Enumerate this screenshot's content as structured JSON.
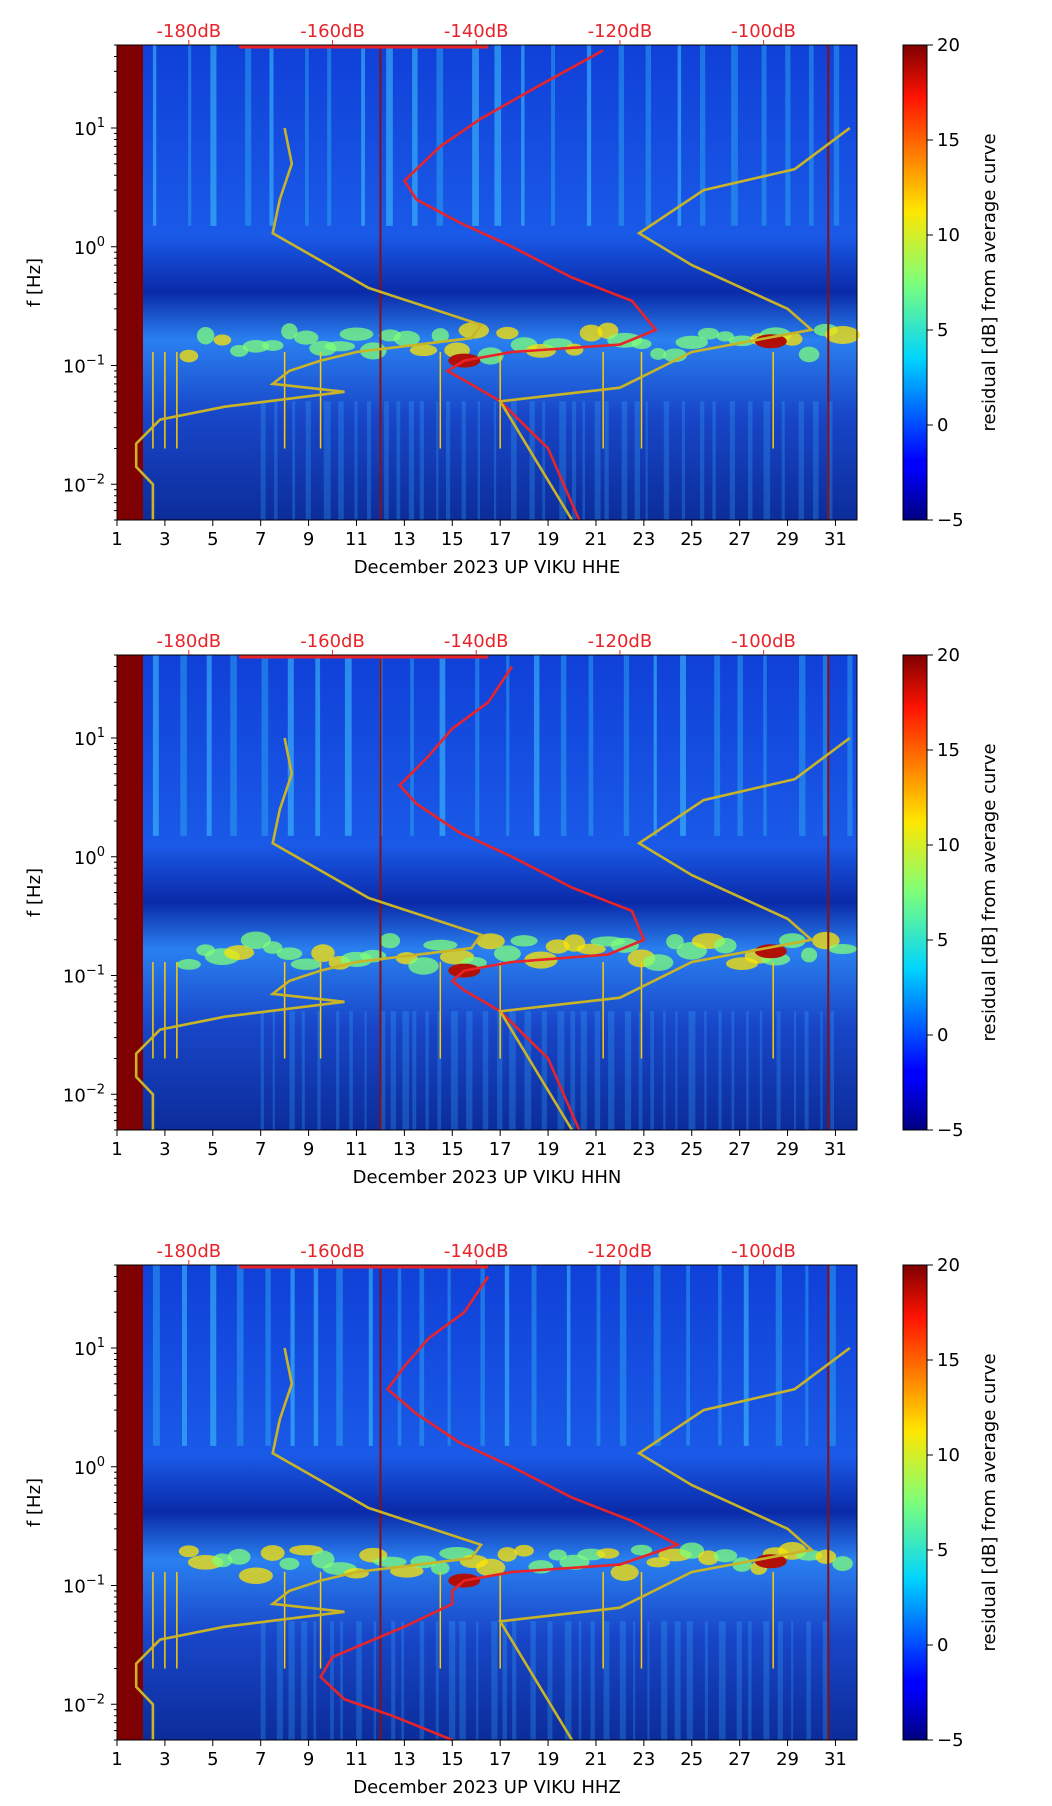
{
  "chart_data": [
    {
      "type": "heatmap",
      "title": "",
      "xlabel": "December 2023 UP VIKU  HHE",
      "ylabel": "f [Hz]",
      "x_ticks": [
        1,
        3,
        5,
        7,
        9,
        11,
        13,
        15,
        17,
        19,
        21,
        23,
        25,
        27,
        29,
        31
      ],
      "xlim": [
        1,
        31.9
      ],
      "y_scale": "log",
      "ylim": [
        0.005,
        50
      ],
      "y_ticks": [
        {
          "value": 0.01,
          "base": "10",
          "exp": "−2"
        },
        {
          "value": 0.1,
          "base": "10",
          "exp": "−1"
        },
        {
          "value": 1,
          "base": "10",
          "exp": "0"
        },
        {
          "value": 10,
          "base": "10",
          "exp": "1"
        }
      ],
      "top_axis_labels": [
        "-180dB",
        "-160dB",
        "-140dB",
        "-120dB",
        "-100dB"
      ],
      "colorbar": {
        "label": "residual [dB] from average curve",
        "min": -5,
        "max": 20,
        "ticks": [
          -5,
          0,
          5,
          10,
          15,
          20
        ],
        "tick_labels": [
          "−5",
          "0",
          "5",
          "10",
          "15",
          "20"
        ],
        "colormap": "jet"
      },
      "series": [
        {
          "name": "average PSD (red)",
          "color": "#e8232a",
          "x": [
            21.3,
            18.5,
            16.2,
            14.5,
            13.0,
            13.5,
            15.3,
            17.5,
            20.0,
            22.5,
            23.5,
            22.0,
            17.5,
            15.5,
            14.8,
            15.5,
            17.0,
            19.0,
            20.3
          ],
          "y": [
            45,
            22,
            12,
            7,
            3.6,
            2.5,
            1.6,
            1.0,
            0.55,
            0.35,
            0.2,
            0.15,
            0.13,
            0.11,
            0.09,
            0.075,
            0.05,
            0.02,
            0.005
          ]
        },
        {
          "name": "noise model (yellow)",
          "color": "#c9b428",
          "x": [
            8.0,
            8.3,
            7.8,
            7.5,
            11.5,
            16.2,
            15.8,
            11.0,
            9.5,
            8.2,
            7.5,
            10.5,
            5.5,
            2.8,
            1.8,
            1.8,
            2.5,
            2.5
          ],
          "y": [
            10,
            5,
            2.5,
            1.3,
            0.45,
            0.22,
            0.17,
            0.13,
            0.11,
            0.09,
            0.07,
            0.06,
            0.045,
            0.035,
            0.022,
            0.014,
            0.01,
            0.005
          ]
        },
        {
          "name": "noise model 2 (yellow)",
          "color": "#c9b428",
          "x": [
            20.0,
            17.0,
            22.0,
            25.0,
            30.0,
            29.0,
            25.0,
            22.8,
            25.5,
            29.3,
            31.6
          ],
          "y": [
            0.005,
            0.05,
            0.065,
            0.13,
            0.2,
            0.3,
            0.7,
            1.3,
            3.0,
            4.5,
            10
          ]
        }
      ]
    },
    {
      "type": "heatmap",
      "title": "",
      "xlabel": "December 2023 UP VIKU  HHN",
      "ylabel": "f [Hz]",
      "x_ticks": [
        1,
        3,
        5,
        7,
        9,
        11,
        13,
        15,
        17,
        19,
        21,
        23,
        25,
        27,
        29,
        31
      ],
      "xlim": [
        1,
        31.9
      ],
      "y_scale": "log",
      "ylim": [
        0.005,
        50
      ],
      "y_ticks": [
        {
          "value": 0.01,
          "base": "10",
          "exp": "−2"
        },
        {
          "value": 0.1,
          "base": "10",
          "exp": "−1"
        },
        {
          "value": 1,
          "base": "10",
          "exp": "0"
        },
        {
          "value": 10,
          "base": "10",
          "exp": "1"
        }
      ],
      "top_axis_labels": [
        "-180dB",
        "-160dB",
        "-140dB",
        "-120dB",
        "-100dB"
      ],
      "colorbar": {
        "label": "residual [dB] from average curve",
        "min": -5,
        "max": 20,
        "ticks": [
          -5,
          0,
          5,
          10,
          15,
          20
        ],
        "tick_labels": [
          "−5",
          "0",
          "5",
          "10",
          "15",
          "20"
        ],
        "colormap": "jet"
      },
      "series": [
        {
          "name": "average PSD (red)",
          "color": "#e8232a",
          "x": [
            17.5,
            16.5,
            15.0,
            14.0,
            12.8,
            13.5,
            15.3,
            17.5,
            20.0,
            22.5,
            23.0,
            21.5,
            17.5,
            15.5,
            15.0,
            15.5,
            17.0,
            19.0,
            20.3
          ],
          "y": [
            40,
            20,
            12,
            7,
            4.0,
            2.8,
            1.6,
            1.0,
            0.55,
            0.35,
            0.2,
            0.15,
            0.13,
            0.11,
            0.09,
            0.075,
            0.05,
            0.02,
            0.005
          ]
        },
        {
          "name": "noise model (yellow)",
          "color": "#c9b428",
          "x": [
            8.0,
            8.3,
            7.8,
            7.5,
            11.5,
            16.2,
            15.8,
            11.0,
            9.5,
            8.2,
            7.5,
            10.5,
            5.5,
            2.8,
            1.8,
            1.8,
            2.5,
            2.5
          ],
          "y": [
            10,
            5,
            2.5,
            1.3,
            0.45,
            0.22,
            0.17,
            0.13,
            0.11,
            0.09,
            0.07,
            0.06,
            0.045,
            0.035,
            0.022,
            0.014,
            0.01,
            0.005
          ]
        },
        {
          "name": "noise model 2 (yellow)",
          "color": "#c9b428",
          "x": [
            20.0,
            17.0,
            22.0,
            25.0,
            30.0,
            29.0,
            25.0,
            22.8,
            25.5,
            29.3,
            31.6
          ],
          "y": [
            0.005,
            0.05,
            0.065,
            0.13,
            0.2,
            0.3,
            0.7,
            1.3,
            3.0,
            4.5,
            10
          ]
        }
      ]
    },
    {
      "type": "heatmap",
      "title": "",
      "xlabel": "December 2023 UP VIKU  HHZ",
      "ylabel": "f [Hz]",
      "x_ticks": [
        1,
        3,
        5,
        7,
        9,
        11,
        13,
        15,
        17,
        19,
        21,
        23,
        25,
        27,
        29,
        31
      ],
      "xlim": [
        1,
        31.9
      ],
      "y_scale": "log",
      "ylim": [
        0.005,
        50
      ],
      "y_ticks": [
        {
          "value": 0.01,
          "base": "10",
          "exp": "−2"
        },
        {
          "value": 0.1,
          "base": "10",
          "exp": "−1"
        },
        {
          "value": 1,
          "base": "10",
          "exp": "0"
        },
        {
          "value": 10,
          "base": "10",
          "exp": "1"
        }
      ],
      "top_axis_labels": [
        "-180dB",
        "-160dB",
        "-140dB",
        "-120dB",
        "-100dB"
      ],
      "colorbar": {
        "label": "residual [dB] from average curve",
        "min": -5,
        "max": 20,
        "ticks": [
          -5,
          0,
          5,
          10,
          15,
          20
        ],
        "tick_labels": [
          "−5",
          "0",
          "5",
          "10",
          "15",
          "20"
        ],
        "colormap": "jet"
      },
      "series": [
        {
          "name": "average PSD (red)",
          "color": "#e8232a",
          "x": [
            16.5,
            15.5,
            14.0,
            13.0,
            12.3,
            13.5,
            15.3,
            17.5,
            20.0,
            22.5,
            24.4,
            22.0,
            17.5,
            15.5,
            15.0,
            15.0,
            13.0,
            10.0,
            9.5,
            10.5,
            12.5,
            15.0
          ],
          "y": [
            40,
            20,
            12,
            7,
            4.5,
            2.8,
            1.6,
            1.0,
            0.55,
            0.35,
            0.22,
            0.15,
            0.13,
            0.11,
            0.09,
            0.07,
            0.045,
            0.025,
            0.017,
            0.011,
            0.008,
            0.005
          ]
        },
        {
          "name": "noise model (yellow)",
          "color": "#c9b428",
          "x": [
            8.0,
            8.3,
            7.8,
            7.5,
            11.5,
            16.2,
            15.8,
            11.0,
            9.5,
            8.2,
            7.5,
            10.5,
            5.5,
            2.8,
            1.8,
            1.8,
            2.5,
            2.5
          ],
          "y": [
            10,
            5,
            2.5,
            1.3,
            0.45,
            0.22,
            0.17,
            0.13,
            0.11,
            0.09,
            0.07,
            0.06,
            0.045,
            0.035,
            0.022,
            0.014,
            0.01,
            0.005
          ]
        },
        {
          "name": "noise model 2 (yellow)",
          "color": "#c9b428",
          "x": [
            20.0,
            17.0,
            22.0,
            25.0,
            30.0,
            29.0,
            25.0,
            22.8,
            25.5,
            29.3,
            31.6
          ],
          "y": [
            0.005,
            0.05,
            0.065,
            0.13,
            0.2,
            0.3,
            0.7,
            1.3,
            3.0,
            4.5,
            10
          ]
        }
      ]
    }
  ]
}
